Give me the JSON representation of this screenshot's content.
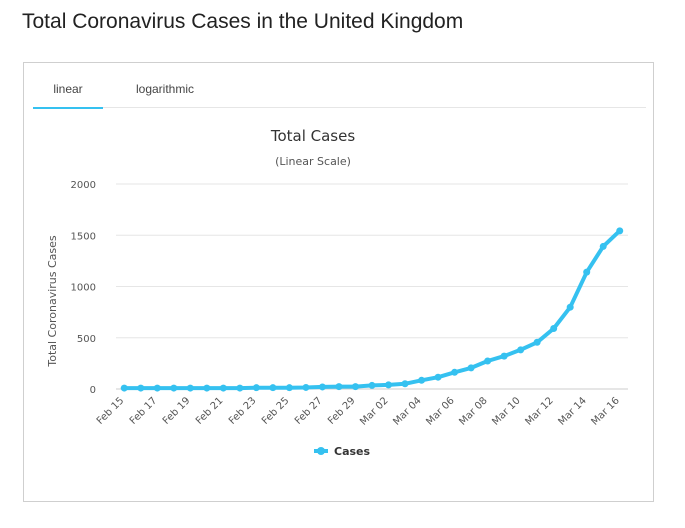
{
  "page": {
    "title": "Total Coronavirus Cases in the United Kingdom"
  },
  "tabs": [
    {
      "label": "linear",
      "active": true
    },
    {
      "label": "logarithmic",
      "active": false
    }
  ],
  "colors": {
    "series": "#35c1f0",
    "grid": "#e6e6e6",
    "text": "#333333",
    "axis_text": "#555555"
  },
  "chart_data": {
    "type": "line",
    "title": "Total Cases",
    "subtitle": "(Linear Scale)",
    "xlabel": "",
    "ylabel": "Total Coronavirus Cases",
    "ylim": [
      0,
      2000
    ],
    "yticks": [
      0,
      500,
      1000,
      1500,
      2000
    ],
    "grid": true,
    "legend": "bottom-center",
    "x": [
      "Feb 15",
      "Feb 16",
      "Feb 17",
      "Feb 18",
      "Feb 19",
      "Feb 20",
      "Feb 21",
      "Feb 22",
      "Feb 23",
      "Feb 24",
      "Feb 25",
      "Feb 26",
      "Feb 27",
      "Feb 28",
      "Feb 29",
      "Mar 01",
      "Mar 02",
      "Mar 03",
      "Mar 04",
      "Mar 05",
      "Mar 06",
      "Mar 07",
      "Mar 08",
      "Mar 09",
      "Mar 10",
      "Mar 11",
      "Mar 12",
      "Mar 13",
      "Mar 14",
      "Mar 15",
      "Mar 16"
    ],
    "x_tick_labels": [
      "Feb 15",
      "Feb 17",
      "Feb 19",
      "Feb 21",
      "Feb 23",
      "Feb 25",
      "Feb 27",
      "Feb 29",
      "Mar 02",
      "Mar 04",
      "Mar 06",
      "Mar 08",
      "Mar 10",
      "Mar 12",
      "Mar 14",
      "Mar 16"
    ],
    "series": [
      {
        "name": "Cases",
        "values": [
          9,
          9,
          9,
          9,
          9,
          9,
          9,
          9,
          13,
          13,
          13,
          15,
          20,
          23,
          23,
          35,
          40,
          51,
          85,
          115,
          163,
          206,
          273,
          321,
          382,
          456,
          590,
          798,
          1140,
          1391,
          1543
        ]
      }
    ]
  }
}
